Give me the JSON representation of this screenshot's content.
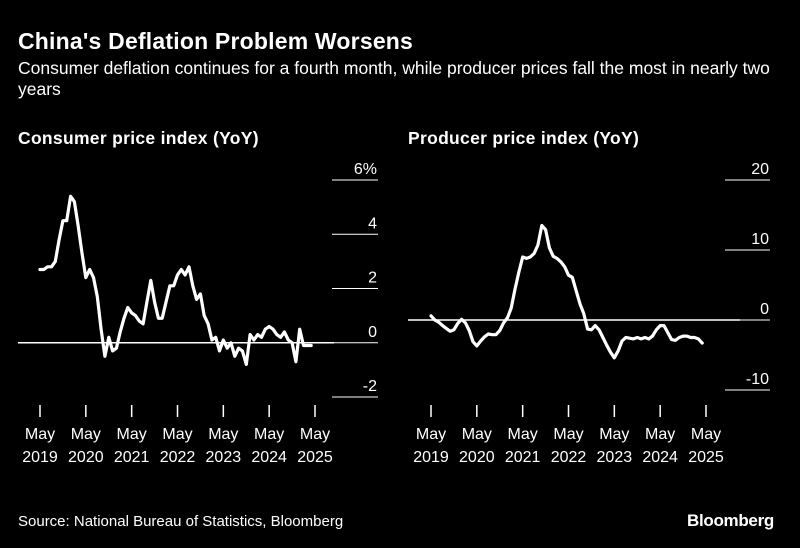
{
  "header": {
    "title": "China's Deflation Problem Worsens",
    "subtitle": "Consumer deflation continues for a fourth month, while producer prices fall the most in nearly two years"
  },
  "footer": {
    "source": "Source: National Bureau of Statistics, Bloomberg",
    "brand": "Bloomberg"
  },
  "colors": {
    "background": "#000000",
    "foreground": "#ffffff"
  },
  "chart_data": [
    {
      "type": "line",
      "title": "Consumer price index (YoY)",
      "xlabel": "",
      "ylabel": "",
      "x_ticks": [
        {
          "year": 2019,
          "label": [
            "May",
            "2019"
          ]
        },
        {
          "year": 2020,
          "label": [
            "May",
            "2020"
          ]
        },
        {
          "year": 2021,
          "label": [
            "May",
            "2021"
          ]
        },
        {
          "year": 2022,
          "label": [
            "May",
            "2022"
          ]
        },
        {
          "year": 2023,
          "label": [
            "May",
            "2023"
          ]
        },
        {
          "year": 2024,
          "label": [
            "May",
            "2024"
          ]
        },
        {
          "year": 2025,
          "label": [
            "May",
            "2025"
          ]
        }
      ],
      "y_ticks": [
        {
          "value": 6,
          "label": "6%"
        },
        {
          "value": 4,
          "label": "4"
        },
        {
          "value": 2,
          "label": "2"
        },
        {
          "value": 0,
          "label": "0"
        },
        {
          "value": -2,
          "label": "-2"
        }
      ],
      "ylim": [
        -2,
        6
      ],
      "grid": true,
      "series": [
        {
          "start": {
            "year": 2019,
            "month": 5
          },
          "values": [
            2.7,
            2.7,
            2.8,
            2.8,
            3.0,
            3.8,
            4.5,
            4.5,
            5.4,
            5.2,
            4.3,
            3.3,
            2.4,
            2.7,
            2.4,
            1.7,
            0.5,
            -0.5,
            0.2,
            -0.3,
            -0.2,
            0.4,
            0.9,
            1.3,
            1.1,
            1.0,
            0.8,
            0.7,
            1.5,
            2.3,
            1.5,
            0.9,
            0.9,
            1.5,
            2.1,
            2.1,
            2.5,
            2.7,
            2.5,
            2.8,
            2.1,
            1.6,
            1.8,
            1.0,
            0.7,
            0.1,
            0.2,
            -0.3,
            0.1,
            -0.2,
            0.0,
            -0.5,
            -0.2,
            -0.3,
            -0.8,
            0.3,
            0.1,
            0.3,
            0.2,
            0.5,
            0.6,
            0.5,
            0.3,
            0.2,
            0.4,
            0.1,
            0.0,
            -0.7,
            0.5,
            -0.1,
            -0.1,
            -0.1
          ]
        }
      ]
    },
    {
      "type": "line",
      "title": "Producer price index (YoY)",
      "xlabel": "",
      "ylabel": "",
      "x_ticks": [
        {
          "year": 2019,
          "label": [
            "May",
            "2019"
          ]
        },
        {
          "year": 2020,
          "label": [
            "May",
            "2020"
          ]
        },
        {
          "year": 2021,
          "label": [
            "May",
            "2021"
          ]
        },
        {
          "year": 2022,
          "label": [
            "May",
            "2022"
          ]
        },
        {
          "year": 2023,
          "label": [
            "May",
            "2023"
          ]
        },
        {
          "year": 2024,
          "label": [
            "May",
            "2024"
          ]
        },
        {
          "year": 2025,
          "label": [
            "May",
            "2025"
          ]
        }
      ],
      "y_ticks": [
        {
          "value": 20,
          "label": "20"
        },
        {
          "value": 10,
          "label": "10"
        },
        {
          "value": 0,
          "label": "0"
        },
        {
          "value": -10,
          "label": "-10"
        }
      ],
      "ylim": [
        -10,
        20
      ],
      "grid": true,
      "series": [
        {
          "start": {
            "year": 2019,
            "month": 5
          },
          "values": [
            0.6,
            0.0,
            -0.3,
            -0.8,
            -1.2,
            -1.6,
            -1.4,
            -0.5,
            0.1,
            -0.4,
            -1.5,
            -3.1,
            -3.7,
            -3.0,
            -2.4,
            -2.0,
            -2.1,
            -2.1,
            -1.5,
            -0.4,
            0.3,
            1.7,
            4.4,
            6.8,
            9.0,
            8.8,
            9.0,
            9.5,
            10.7,
            13.5,
            12.9,
            10.3,
            9.1,
            8.8,
            8.3,
            7.6,
            6.4,
            6.1,
            4.2,
            2.3,
            0.9,
            -1.3,
            -1.4,
            -0.8,
            -1.4,
            -2.5,
            -3.6,
            -4.6,
            -5.4,
            -4.4,
            -3.0,
            -2.5,
            -2.6,
            -2.7,
            -2.5,
            -2.7,
            -2.5,
            -2.7,
            -2.3,
            -1.4,
            -0.8,
            -0.8,
            -1.8,
            -2.8,
            -2.9,
            -2.5,
            -2.3,
            -2.3,
            -2.5,
            -2.5,
            -2.7,
            -3.3
          ]
        }
      ]
    }
  ]
}
